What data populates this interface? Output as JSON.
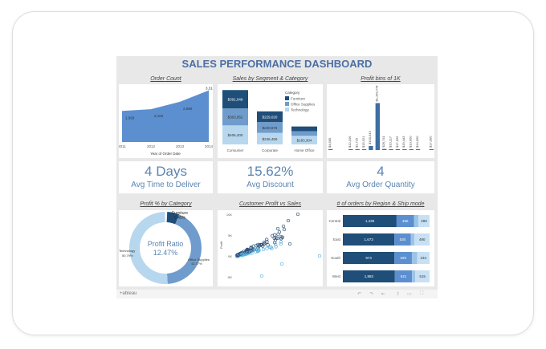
{
  "dashboard": {
    "title": "SALES PERFORMANCE DASHBOARD"
  },
  "order_count": {
    "title": "Order Count",
    "xlabel": "Year of Order Date",
    "years": [
      "2011",
      "2012",
      "2013",
      "2014"
    ],
    "values": [
      1993,
      2102,
      2580,
      3312
    ],
    "labels": [
      "1,993",
      "2,102",
      "2,580",
      "3,312"
    ],
    "color": "#5b8fd0"
  },
  "segment": {
    "title": "Sales by Segment & Category",
    "legend_title": "Category",
    "legend": [
      "Furniture",
      "Office Supplies",
      "Technology"
    ],
    "colors": [
      "#1f4e79",
      "#6f9ccc",
      "#b7d7ee"
    ],
    "segments": [
      {
        "name": "Consumer",
        "values": [
          391049,
          363952,
          406400
        ],
        "labels": [
          "$391,049",
          "$363,952",
          "$406,400"
        ]
      },
      {
        "name": "Corporate",
        "values": [
          229020,
          230676,
          246450
        ],
        "labels": [
          "$229,020",
          "$230,676",
          "$246,450"
        ]
      },
      {
        "name": "Home Office",
        "values": [
          100000,
          100000,
          183304
        ],
        "labels": [
          "",
          "",
          "$183,304"
        ]
      }
    ]
  },
  "profit_bins": {
    "title": "Profit bins of 1K",
    "values": [
      4580,
      0,
      0,
      12109,
      1725,
      15321,
      100543,
      1169778,
      26741,
      10117,
      17555,
      19443,
      10000,
      14000,
      0,
      17000
    ],
    "labels": [
      "$4,580",
      "",
      "",
      "$12,109",
      "$1,725",
      "$15,321",
      "$100,543",
      "$1,169,778",
      "$26,741",
      "$10,117",
      "$17,555",
      "$19,443",
      "$10,000",
      "$14,000",
      "",
      "$17,000"
    ],
    "color": "#3d6ea3"
  },
  "kpis": [
    {
      "value": "4 Days",
      "label": "Avg Time to Deliver"
    },
    {
      "value": "15.62%",
      "label": "Avg Discount"
    },
    {
      "value": "4",
      "label": "Avg Order Quantity"
    }
  ],
  "profit_category": {
    "title": "Profit % by Category",
    "center_label": "Profit Ratio",
    "center_value": "12.47%",
    "slices": [
      {
        "name": "Furniture",
        "pct": 5.45,
        "label": "Furniture\n5.45%",
        "color": "#1f4e79"
      },
      {
        "name": "Office Supplies",
        "pct": 42.77,
        "label": "Office Supplies 42.77%",
        "color": "#6f9ccc"
      },
      {
        "name": "Technology",
        "pct": 50.79,
        "label": "Technology 50.79%",
        "color": "#b7d7ee"
      }
    ],
    "slice_labels": {
      "furniture": "Furniture",
      "office": "Office Supplies",
      "office_pct": "42.77%",
      "tech": "Technology",
      "tech_pct": "50.79%"
    }
  },
  "scatter": {
    "title": "Customer Profit vs Sales",
    "ylabel": "Profit",
    "yticks": [
      "10K",
      "5K",
      "0K",
      "-5K"
    ]
  },
  "region_ship": {
    "title": "# of orders by Region & Ship mode",
    "colors": [
      "#1f4e79",
      "#5b8fd0",
      "#9cc4e6",
      "#c7e0f4"
    ],
    "rows": [
      {
        "region": "Central",
        "values": [
          1439,
          465,
          120,
          299
        ],
        "labels": [
          "1,439",
          "465",
          "",
          "299"
        ]
      },
      {
        "region": "East",
        "values": [
          1673,
          530,
          120,
          490
        ],
        "labels": [
          "1,673",
          "530",
          "",
          "490"
        ]
      },
      {
        "region": "South",
        "values": [
          974,
          329,
          100,
          234
        ],
        "labels": [
          "974",
          "329",
          "",
          "234"
        ]
      },
      {
        "region": "West",
        "values": [
          1882,
          621,
          120,
          515
        ],
        "labels": [
          "1,882",
          "621",
          "",
          "515"
        ]
      }
    ]
  },
  "footer": {
    "brand": "+ableau"
  }
}
